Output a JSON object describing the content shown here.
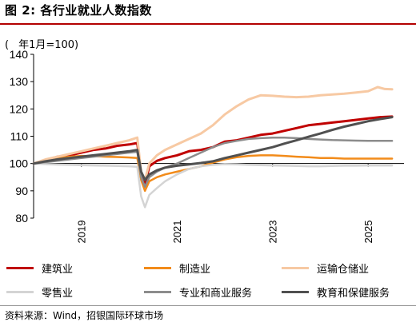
{
  "header": {
    "title": "图 2: 各行业就业人数指数",
    "unit_paren": "(",
    "unit": "年1月=100)"
  },
  "source": "资料来源：Wind，招银国际环球市场",
  "chart_data": {
    "type": "line",
    "title": "图 2: 各行业就业人数指数",
    "ylim": [
      80,
      140
    ],
    "yticks": [
      "80",
      "90",
      "100",
      "110",
      "120",
      "130",
      "140"
    ],
    "xlim": [
      2018.0,
      2025.75
    ],
    "xticks": [
      {
        "label": "2019",
        "x": 2019.0
      },
      {
        "label": "2021",
        "x": 2021.0
      },
      {
        "label": "2023",
        "x": 2023.0
      },
      {
        "label": "2025",
        "x": 2025.0
      }
    ],
    "grid": false,
    "legend": "bottom",
    "series": [
      {
        "name": "建筑业",
        "color": "#c00000",
        "width": 3,
        "points": [
          [
            2018.0,
            100
          ],
          [
            2018.25,
            101
          ],
          [
            2018.5,
            102.5
          ],
          [
            2018.75,
            103
          ],
          [
            2019.0,
            104
          ],
          [
            2019.25,
            105
          ],
          [
            2019.5,
            105.5
          ],
          [
            2019.75,
            106.5
          ],
          [
            2020.0,
            107
          ],
          [
            2020.17,
            107.5
          ],
          [
            2020.25,
            96
          ],
          [
            2020.33,
            92
          ],
          [
            2020.42,
            99
          ],
          [
            2020.58,
            101
          ],
          [
            2020.75,
            102
          ],
          [
            2021.0,
            103
          ],
          [
            2021.25,
            104.5
          ],
          [
            2021.5,
            105
          ],
          [
            2021.75,
            106
          ],
          [
            2022.0,
            108
          ],
          [
            2022.25,
            108.5
          ],
          [
            2022.5,
            109.5
          ],
          [
            2022.75,
            110.5
          ],
          [
            2023.0,
            111
          ],
          [
            2023.25,
            112
          ],
          [
            2023.5,
            113
          ],
          [
            2023.75,
            114
          ],
          [
            2024.0,
            114.5
          ],
          [
            2024.25,
            115
          ],
          [
            2024.5,
            115.5
          ],
          [
            2024.75,
            116
          ],
          [
            2025.0,
            116.5
          ],
          [
            2025.25,
            117
          ],
          [
            2025.5,
            117.2
          ]
        ]
      },
      {
        "name": "制造业",
        "color": "#f28b1a",
        "width": 2.5,
        "points": [
          [
            2018.0,
            100
          ],
          [
            2018.25,
            101
          ],
          [
            2018.5,
            102
          ],
          [
            2018.75,
            102.5
          ],
          [
            2019.0,
            102.8
          ],
          [
            2019.25,
            102.7
          ],
          [
            2019.5,
            102.5
          ],
          [
            2019.75,
            102.4
          ],
          [
            2020.0,
            102.2
          ],
          [
            2020.17,
            102
          ],
          [
            2020.25,
            94
          ],
          [
            2020.33,
            90
          ],
          [
            2020.42,
            93.5
          ],
          [
            2020.58,
            95
          ],
          [
            2020.75,
            96
          ],
          [
            2021.0,
            97
          ],
          [
            2021.25,
            98
          ],
          [
            2021.5,
            99
          ],
          [
            2021.75,
            100.3
          ],
          [
            2022.0,
            101.5
          ],
          [
            2022.25,
            102.3
          ],
          [
            2022.5,
            102.8
          ],
          [
            2022.75,
            103
          ],
          [
            2023.0,
            103
          ],
          [
            2023.25,
            102.8
          ],
          [
            2023.5,
            102.5
          ],
          [
            2023.75,
            102.3
          ],
          [
            2024.0,
            102
          ],
          [
            2024.25,
            102
          ],
          [
            2024.5,
            101.8
          ],
          [
            2024.75,
            101.8
          ],
          [
            2025.0,
            101.8
          ],
          [
            2025.25,
            101.8
          ],
          [
            2025.5,
            101.8
          ]
        ]
      },
      {
        "name": "运输仓储业",
        "color": "#f7c9a3",
        "width": 3,
        "points": [
          [
            2018.0,
            100
          ],
          [
            2018.25,
            101.5
          ],
          [
            2018.5,
            102.5
          ],
          [
            2018.75,
            103.5
          ],
          [
            2019.0,
            104.5
          ],
          [
            2019.25,
            105.5
          ],
          [
            2019.5,
            106.5
          ],
          [
            2019.75,
            107.5
          ],
          [
            2020.0,
            108.5
          ],
          [
            2020.17,
            109.5
          ],
          [
            2020.25,
            97
          ],
          [
            2020.33,
            94
          ],
          [
            2020.42,
            100
          ],
          [
            2020.58,
            103
          ],
          [
            2020.75,
            105
          ],
          [
            2021.0,
            107
          ],
          [
            2021.25,
            109
          ],
          [
            2021.5,
            111
          ],
          [
            2021.75,
            114
          ],
          [
            2022.0,
            118
          ],
          [
            2022.25,
            121
          ],
          [
            2022.5,
            123.5
          ],
          [
            2022.75,
            125
          ],
          [
            2023.0,
            124.8
          ],
          [
            2023.25,
            124.5
          ],
          [
            2023.5,
            124.3
          ],
          [
            2023.75,
            124.5
          ],
          [
            2024.0,
            125
          ],
          [
            2024.25,
            125.3
          ],
          [
            2024.5,
            125.6
          ],
          [
            2024.75,
            126
          ],
          [
            2025.0,
            126.5
          ],
          [
            2025.2,
            128
          ],
          [
            2025.35,
            127.3
          ],
          [
            2025.5,
            127.2
          ]
        ]
      },
      {
        "name": "零售业",
        "color": "#d4d4d4",
        "width": 2.5,
        "points": [
          [
            2018.0,
            100
          ],
          [
            2018.25,
            99.8
          ],
          [
            2018.5,
            99.6
          ],
          [
            2018.75,
            99.5
          ],
          [
            2019.0,
            99.4
          ],
          [
            2019.25,
            99.3
          ],
          [
            2019.5,
            99.2
          ],
          [
            2019.75,
            99.1
          ],
          [
            2020.0,
            99
          ],
          [
            2020.17,
            98.8
          ],
          [
            2020.25,
            88
          ],
          [
            2020.33,
            84
          ],
          [
            2020.42,
            88.5
          ],
          [
            2020.58,
            91
          ],
          [
            2020.75,
            93.5
          ],
          [
            2021.0,
            96
          ],
          [
            2021.25,
            98
          ],
          [
            2021.5,
            99
          ],
          [
            2021.75,
            99.5
          ],
          [
            2022.0,
            99.8
          ],
          [
            2022.25,
            99.7
          ],
          [
            2022.5,
            99.5
          ],
          [
            2022.75,
            99.4
          ],
          [
            2023.0,
            99.3
          ],
          [
            2023.25,
            99.2
          ],
          [
            2023.5,
            99.1
          ],
          [
            2023.75,
            99
          ],
          [
            2024.0,
            99
          ],
          [
            2024.25,
            99.1
          ],
          [
            2024.5,
            99.2
          ],
          [
            2024.75,
            99.2
          ],
          [
            2025.0,
            99.3
          ],
          [
            2025.25,
            99.3
          ],
          [
            2025.5,
            99.3
          ]
        ]
      },
      {
        "name": "专业和商业服务",
        "color": "#8c8c8c",
        "width": 2.5,
        "points": [
          [
            2018.0,
            100
          ],
          [
            2018.25,
            100.5
          ],
          [
            2018.5,
            101
          ],
          [
            2018.75,
            101.5
          ],
          [
            2019.0,
            102
          ],
          [
            2019.25,
            102.5
          ],
          [
            2019.5,
            103
          ],
          [
            2019.75,
            103.5
          ],
          [
            2020.0,
            104
          ],
          [
            2020.17,
            104.3
          ],
          [
            2020.25,
            95
          ],
          [
            2020.33,
            91.5
          ],
          [
            2020.42,
            95
          ],
          [
            2020.58,
            97
          ],
          [
            2020.75,
            98.5
          ],
          [
            2021.0,
            100
          ],
          [
            2021.25,
            102
          ],
          [
            2021.5,
            104
          ],
          [
            2021.75,
            106
          ],
          [
            2022.0,
            107.5
          ],
          [
            2022.25,
            108.3
          ],
          [
            2022.5,
            109
          ],
          [
            2022.75,
            109.3
          ],
          [
            2023.0,
            109.5
          ],
          [
            2023.25,
            109.5
          ],
          [
            2023.5,
            109.3
          ],
          [
            2023.75,
            109
          ],
          [
            2024.0,
            108.8
          ],
          [
            2024.25,
            108.6
          ],
          [
            2024.5,
            108.5
          ],
          [
            2024.75,
            108.4
          ],
          [
            2025.0,
            108.3
          ],
          [
            2025.25,
            108.3
          ],
          [
            2025.5,
            108.3
          ]
        ]
      },
      {
        "name": "教育和保健服务",
        "color": "#505050",
        "width": 3,
        "points": [
          [
            2018.0,
            100
          ],
          [
            2018.25,
            100.8
          ],
          [
            2018.5,
            101.5
          ],
          [
            2018.75,
            102
          ],
          [
            2019.0,
            102.5
          ],
          [
            2019.25,
            103
          ],
          [
            2019.5,
            103.5
          ],
          [
            2019.75,
            104
          ],
          [
            2020.0,
            104.5
          ],
          [
            2020.17,
            105
          ],
          [
            2020.25,
            97
          ],
          [
            2020.33,
            94
          ],
          [
            2020.42,
            96
          ],
          [
            2020.58,
            97.5
          ],
          [
            2020.75,
            98.5
          ],
          [
            2021.0,
            99.2
          ],
          [
            2021.25,
            99.7
          ],
          [
            2021.5,
            100.2
          ],
          [
            2021.75,
            100.8
          ],
          [
            2022.0,
            102
          ],
          [
            2022.25,
            103
          ],
          [
            2022.5,
            104
          ],
          [
            2022.75,
            105
          ],
          [
            2023.0,
            106
          ],
          [
            2023.25,
            107.3
          ],
          [
            2023.5,
            108.5
          ],
          [
            2023.75,
            109.8
          ],
          [
            2024.0,
            111
          ],
          [
            2024.25,
            112.3
          ],
          [
            2024.5,
            113.5
          ],
          [
            2024.75,
            114.5
          ],
          [
            2025.0,
            115.5
          ],
          [
            2025.25,
            116.3
          ],
          [
            2025.5,
            117
          ]
        ]
      }
    ]
  }
}
